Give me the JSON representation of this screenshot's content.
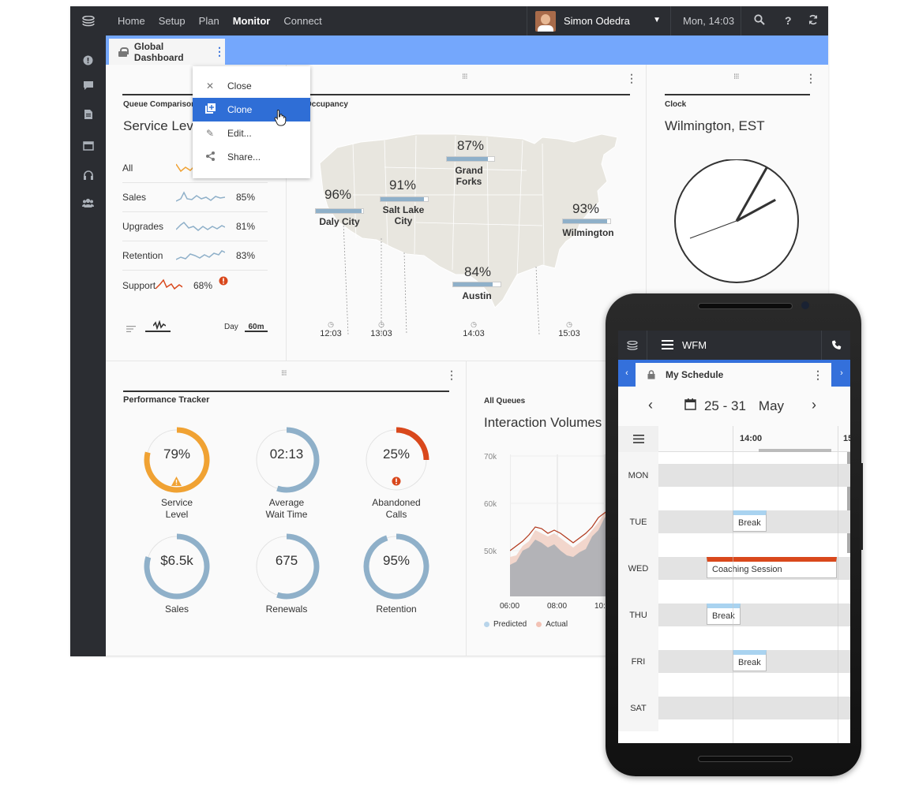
{
  "topbar": {
    "nav": [
      "Home",
      "Setup",
      "Plan",
      "Monitor",
      "Connect"
    ],
    "active_nav": "Monitor",
    "user_name": "Simon Odedra",
    "datetime": "Mon, 14:03"
  },
  "tab": {
    "title": "Global Dashboard"
  },
  "menu": {
    "items": [
      {
        "label": "Close",
        "icon": "close-icon"
      },
      {
        "label": "Clone",
        "icon": "clone-icon"
      },
      {
        "label": "Edit...",
        "icon": "pencil-icon"
      },
      {
        "label": "Share...",
        "icon": "share-icon"
      }
    ],
    "selected": "Clone"
  },
  "queue_comparison": {
    "section_title": "Queue Comparison",
    "title": "Service Level",
    "rows": [
      {
        "label": "All",
        "value": "",
        "color": "#f0a233"
      },
      {
        "label": "Sales",
        "value": "85%",
        "color": "#8fb0c9"
      },
      {
        "label": "Upgrades",
        "value": "81%",
        "color": "#8fb0c9"
      },
      {
        "label": "Retention",
        "value": "83%",
        "color": "#8fb0c9"
      },
      {
        "label": "Support",
        "value": "68%",
        "color": "#d9481c",
        "alert": true
      }
    ],
    "range_day": "Day",
    "range_60m": "60m"
  },
  "occupancy": {
    "section_title": "Occupancy",
    "cities": [
      {
        "name": "Daly City",
        "value": "96%",
        "pct": 96
      },
      {
        "name": "Salt Lake City",
        "value": "91%",
        "pct": 91
      },
      {
        "name": "Grand Forks",
        "value": "87%",
        "pct": 87
      },
      {
        "name": "Austin",
        "value": "84%",
        "pct": 84
      },
      {
        "name": "Wilmington",
        "value": "93%",
        "pct": 93
      }
    ],
    "times": [
      "12:03",
      "13:03",
      "14:03",
      "15:03"
    ]
  },
  "clock": {
    "section_title": "Clock",
    "city": "Wilmington, EST",
    "hour": 14,
    "minute": 3
  },
  "performance": {
    "section_title": "Performance Tracker",
    "gauges": [
      {
        "value": "79%",
        "label1": "Service",
        "label2": "Level",
        "fraction": 0.79,
        "color": "#f0a233",
        "alert": "warning-icon"
      },
      {
        "value": "02:13",
        "label1": "Average",
        "label2": "Wait Time",
        "fraction": 0.55,
        "color": "#8fb0c9",
        "alert": ""
      },
      {
        "value": "25%",
        "label1": "Abandoned",
        "label2": "Calls",
        "fraction": 0.25,
        "color": "#d9481c",
        "alert": "error-icon"
      },
      {
        "value": "$6.5k",
        "label1": "Sales",
        "label2": "",
        "fraction": 0.8,
        "color": "#8fb0c9",
        "alert": ""
      },
      {
        "value": "675",
        "label1": "Renewals",
        "label2": "",
        "fraction": 0.55,
        "color": "#8fb0c9",
        "alert": ""
      },
      {
        "value": "95%",
        "label1": "Retention",
        "label2": "",
        "fraction": 0.95,
        "color": "#8fb0c9",
        "alert": ""
      }
    ]
  },
  "all_queues": {
    "section_title": "All Queues",
    "title": "Interaction Volumes",
    "y_ticks": [
      "70k",
      "60k",
      "50k"
    ],
    "x_ticks": [
      "06:00",
      "08:00",
      "10:"
    ],
    "legend": [
      "Predicted",
      "Actual"
    ]
  },
  "phone": {
    "app_title": "WFM",
    "tab_title": "My Schedule",
    "date_range": "25 - 31",
    "month": "May",
    "time_head": "14:00",
    "time_head2": "15",
    "days": [
      "MON",
      "TUE",
      "WED",
      "THU",
      "FRI",
      "SAT"
    ],
    "events": [
      {
        "day": "TUE",
        "label": "Break"
      },
      {
        "day": "WED",
        "label": "Coaching Session"
      },
      {
        "day": "THU",
        "label": "Break"
      },
      {
        "day": "FRI",
        "label": "Break"
      }
    ]
  }
}
